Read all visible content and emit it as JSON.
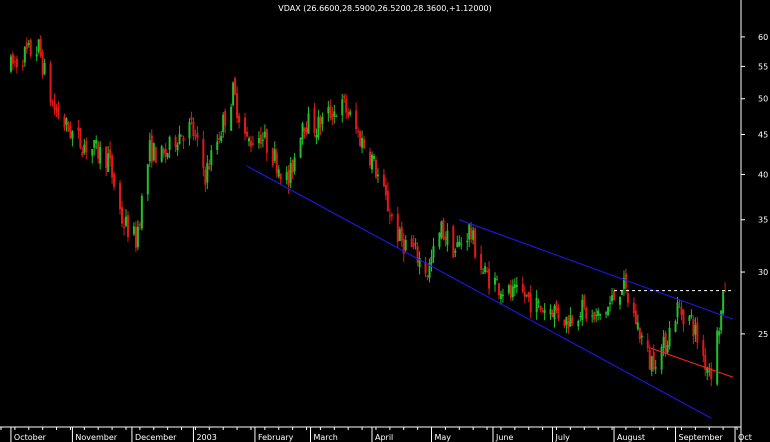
{
  "colors": {
    "background": "#000000",
    "up": "#22c02a",
    "down": "#e01818",
    "axis": "#ffffff",
    "channel": "#1a1aff",
    "support": "#ff2020",
    "resistance": "#ffffff"
  },
  "chart_data": {
    "type": "candlestick",
    "title": "VDAX (26.6600,28.5900,26.5200,28.3600,+1.12000)",
    "y_axis": {
      "position": "right",
      "scale": "log",
      "ylim": [
        19,
        64
      ],
      "ticks": [
        25,
        30,
        35,
        40,
        45,
        50,
        55,
        60
      ]
    },
    "x_axis": {
      "labels": [
        "October",
        "November",
        "December",
        "2003",
        "February",
        "March",
        "April",
        "May",
        "June",
        "July",
        "August",
        "September",
        "Oct"
      ]
    },
    "grid": false,
    "legend": "none",
    "price_path": [
      [
        "2002-10-01",
        55
      ],
      [
        "2002-10-08",
        57
      ],
      [
        "2002-10-15",
        58
      ],
      [
        "2002-10-22",
        49
      ],
      [
        "2002-10-29",
        46
      ],
      [
        "2002-11-05",
        44
      ],
      [
        "2002-11-12",
        43
      ],
      [
        "2002-11-19",
        42
      ],
      [
        "2002-11-26",
        35
      ],
      [
        "2002-12-03",
        33
      ],
      [
        "2002-12-10",
        43
      ],
      [
        "2002-12-17",
        42
      ],
      [
        "2002-12-24",
        45
      ],
      [
        "2002-12-31",
        46
      ],
      [
        "2003-01-07",
        40
      ],
      [
        "2003-01-14",
        45
      ],
      [
        "2003-01-21",
        51
      ],
      [
        "2003-01-28",
        44
      ],
      [
        "2003-02-04",
        45
      ],
      [
        "2003-02-11",
        42
      ],
      [
        "2003-02-18",
        39
      ],
      [
        "2003-02-25",
        47
      ],
      [
        "2003-03-04",
        46
      ],
      [
        "2003-03-11",
        48
      ],
      [
        "2003-03-18",
        49
      ],
      [
        "2003-03-25",
        45
      ],
      [
        "2003-04-01",
        42
      ],
      [
        "2003-04-08",
        37
      ],
      [
        "2003-04-15",
        33
      ],
      [
        "2003-04-22",
        32
      ],
      [
        "2003-04-29",
        30
      ],
      [
        "2003-05-06",
        34
      ],
      [
        "2003-05-13",
        32
      ],
      [
        "2003-05-20",
        34
      ],
      [
        "2003-05-27",
        30
      ],
      [
        "2003-06-03",
        29
      ],
      [
        "2003-06-10",
        28
      ],
      [
        "2003-06-17",
        28
      ],
      [
        "2003-06-24",
        27
      ],
      [
        "2003-07-01",
        27
      ],
      [
        "2003-07-08",
        26
      ],
      [
        "2003-07-15",
        27
      ],
      [
        "2003-07-22",
        26
      ],
      [
        "2003-07-29",
        27
      ],
      [
        "2003-08-05",
        29
      ],
      [
        "2003-08-12",
        26
      ],
      [
        "2003-08-19",
        23
      ],
      [
        "2003-08-26",
        24
      ],
      [
        "2003-09-02",
        27
      ],
      [
        "2003-09-09",
        26
      ],
      [
        "2003-09-16",
        23
      ],
      [
        "2003-09-19",
        22.5
      ],
      [
        "2003-09-26",
        28.36
      ]
    ],
    "trendlines": [
      {
        "kind": "channel_lower",
        "from": [
          "2003-01-28",
          41
        ],
        "to": [
          "2003-09-19",
          19.5
        ]
      },
      {
        "kind": "channel_upper",
        "from": [
          "2003-05-15",
          35
        ],
        "to": [
          "2003-09-30",
          26.1
        ]
      },
      {
        "kind": "support",
        "from": [
          "2003-08-19",
          24
        ],
        "to": [
          "2003-09-30",
          22
        ]
      },
      {
        "kind": "resistance",
        "from": [
          "2003-08-01",
          28.4
        ],
        "to": [
          "2003-09-30",
          28.4
        ]
      }
    ]
  }
}
